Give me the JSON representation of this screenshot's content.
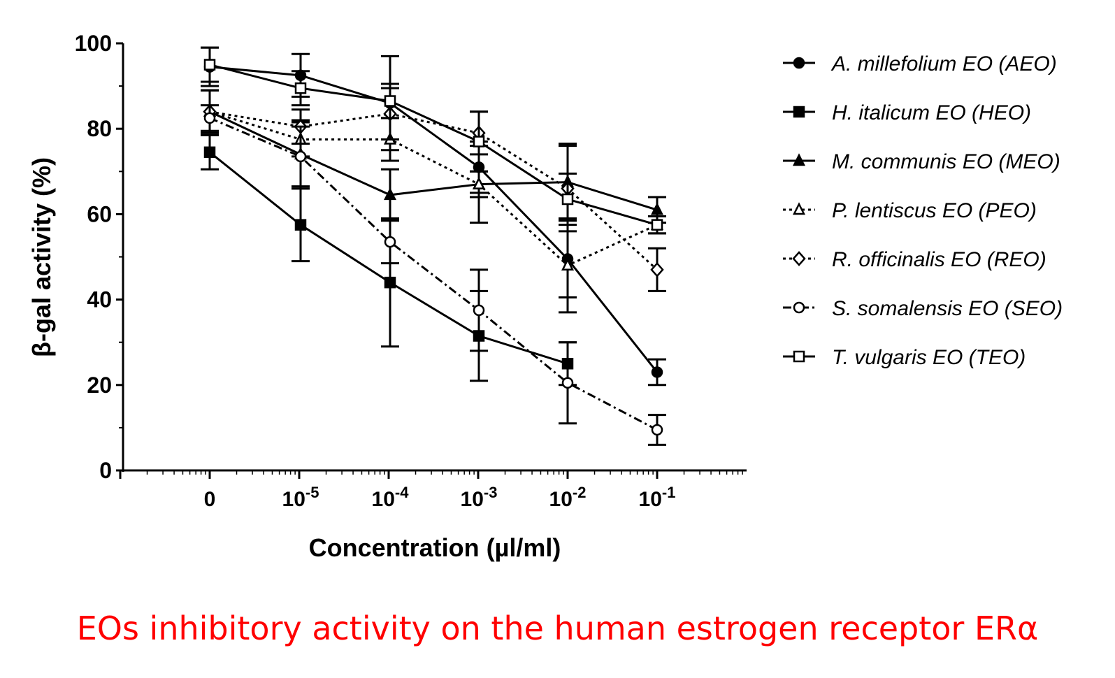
{
  "chart_data": {
    "type": "line",
    "xlabel": "Concentration (µl/ml)",
    "ylabel": "β-gal activity (%)",
    "categories": [
      {
        "base": "0",
        "exp": ""
      },
      {
        "base": "10",
        "exp": "-5"
      },
      {
        "base": "10",
        "exp": "-4"
      },
      {
        "base": "10",
        "exp": "-3"
      },
      {
        "base": "10",
        "exp": "-2"
      },
      {
        "base": "10",
        "exp": "-1"
      }
    ],
    "ylim": [
      0,
      100
    ],
    "yticks": [
      "0",
      "20",
      "40",
      "60",
      "80",
      "100"
    ],
    "grid": false,
    "legend_position": "right",
    "series": [
      {
        "name": "A. millefolium EO (AEO)",
        "marker": "filled-circle",
        "line": "solid",
        "values": [
          94.5,
          92.5,
          86,
          71,
          49.5,
          23
        ],
        "errors": [
          4.5,
          5,
          11,
          6,
          9,
          3
        ]
      },
      {
        "name": "H. italicum EO (HEO)",
        "marker": "filled-square",
        "line": "solid",
        "values": [
          74.5,
          57.5,
          44,
          31.5,
          25,
          null
        ],
        "errors": [
          4,
          8.5,
          15,
          10.5,
          5,
          null
        ]
      },
      {
        "name": "M. communis EO (MEO)",
        "marker": "filled-triangle",
        "line": "solid",
        "values": [
          84,
          74,
          64.5,
          67,
          67.5,
          61
        ],
        "errors": [
          5,
          8,
          6,
          3,
          9,
          3
        ]
      },
      {
        "name": "P. lentiscus EO (PEO)",
        "marker": "open-triangle",
        "line": "dotted",
        "values": [
          84,
          77.5,
          77.5,
          67,
          48,
          57.5
        ],
        "errors": [
          5,
          4,
          5,
          9,
          11,
          2
        ]
      },
      {
        "name": "R. officinalis EO (REO)",
        "marker": "open-diamond",
        "line": "dotted",
        "values": [
          84,
          80.5,
          83.5,
          79,
          66,
          47
        ],
        "errors": [
          5,
          4,
          6,
          5,
          10,
          5
        ]
      },
      {
        "name": "S. somalensis EO (SEO)",
        "marker": "open-circle",
        "line": "dash-dot",
        "values": [
          82.5,
          73.5,
          53.5,
          37.5,
          20.5,
          9.5
        ],
        "errors": [
          3,
          7,
          5,
          9.5,
          9.5,
          3.5
        ]
      },
      {
        "name": "T. vulgaris EO (TEO)",
        "marker": "open-square",
        "line": "solid",
        "values": [
          95,
          89.5,
          86.5,
          77,
          63.5,
          57.5
        ],
        "errors": [
          4,
          4,
          4,
          7,
          6,
          2
        ]
      }
    ]
  },
  "caption": "EOs inhibitory activity on the human estrogen receptor ERα",
  "colors": {
    "ink": "#000000",
    "caption": "#ff0000"
  }
}
